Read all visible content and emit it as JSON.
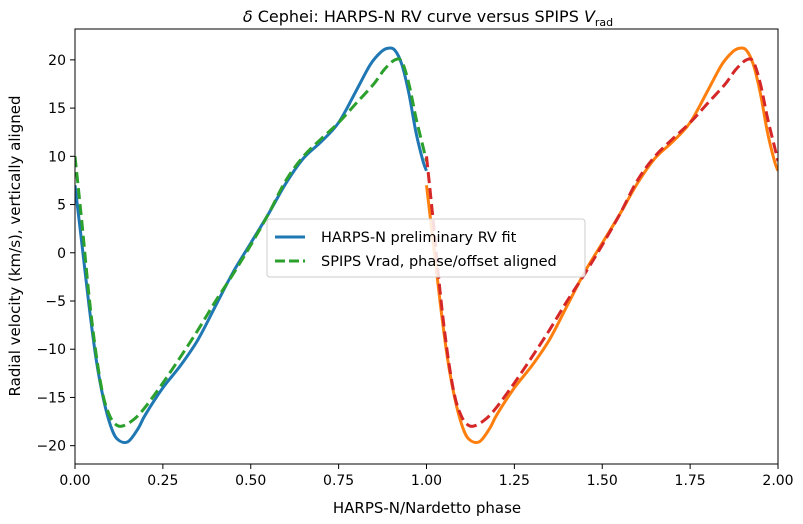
{
  "chart_data": {
    "type": "line",
    "title": {
      "prefix": "δ",
      "main": " Cephei: HARPS-N RV curve versus SPIPS ",
      "v": "V",
      "sub": "rad"
    },
    "xlabel": "HARPS-N/Nardetto phase",
    "ylabel": "Radial velocity (km/s), vertically aligned",
    "xlim": [
      0.0,
      2.0
    ],
    "ylim": [
      -21.9,
      23.2
    ],
    "xticks": [
      "0.00",
      "0.25",
      "0.50",
      "0.75",
      "1.00",
      "1.25",
      "1.50",
      "1.75",
      "2.00"
    ],
    "yticks": [
      "−20",
      "−15",
      "−10",
      "−5",
      "0",
      "5",
      "10",
      "15",
      "20"
    ],
    "grid": false,
    "legend": {
      "placement": "center",
      "entries": [
        "HARPS-N preliminary RV fit",
        "SPIPS Vrad, phase/offset aligned"
      ]
    },
    "colors": {
      "harps_first": "#1f77b4",
      "spips_first": "#2ca02c",
      "harps_second": "#ff7f0e",
      "spips_second": "#d62728"
    },
    "series": [
      {
        "name": "HARPS-N preliminary RV fit",
        "phase_range": "0-1",
        "color": "#1f77b4",
        "style": "solid",
        "x": [
          0.0,
          0.02,
          0.04,
          0.06,
          0.08,
          0.1,
          0.12,
          0.15,
          0.18,
          0.2,
          0.25,
          0.3,
          0.35,
          0.4,
          0.45,
          0.5,
          0.55,
          0.6,
          0.65,
          0.7,
          0.75,
          0.8,
          0.84,
          0.87,
          0.89,
          0.91,
          0.93,
          0.95,
          0.97,
          0.99,
          1.0
        ],
        "y": [
          7.0,
          0.8,
          -5.5,
          -11.0,
          -15.0,
          -17.8,
          -19.3,
          -19.6,
          -18.2,
          -16.8,
          -14.0,
          -11.7,
          -9.0,
          -5.5,
          -2.0,
          1.0,
          4.0,
          7.2,
          9.8,
          11.5,
          13.5,
          16.8,
          19.5,
          20.8,
          21.2,
          21.0,
          19.5,
          16.5,
          12.5,
          9.5,
          8.5
        ]
      },
      {
        "name": "SPIPS Vrad, phase/offset aligned",
        "phase_range": "0-1",
        "color": "#2ca02c",
        "style": "dashed",
        "x": [
          0.0,
          0.02,
          0.04,
          0.06,
          0.08,
          0.1,
          0.12,
          0.14,
          0.17,
          0.2,
          0.25,
          0.3,
          0.35,
          0.4,
          0.45,
          0.5,
          0.55,
          0.6,
          0.65,
          0.7,
          0.75,
          0.8,
          0.85,
          0.88,
          0.91,
          0.93,
          0.95,
          0.97,
          0.99,
          1.0
        ],
        "y": [
          10.0,
          3.0,
          -4.5,
          -10.5,
          -14.8,
          -17.0,
          -17.9,
          -17.9,
          -17.2,
          -16.0,
          -13.5,
          -10.8,
          -8.0,
          -5.0,
          -2.2,
          0.8,
          4.0,
          7.5,
          10.0,
          11.8,
          13.5,
          15.5,
          17.5,
          19.0,
          20.0,
          19.8,
          17.5,
          14.0,
          11.0,
          9.5
        ]
      },
      {
        "name": "HARPS-N preliminary RV fit",
        "phase_range": "1-2",
        "color": "#ff7f0e",
        "style": "solid",
        "x": [
          1.0,
          1.02,
          1.04,
          1.06,
          1.08,
          1.1,
          1.12,
          1.15,
          1.18,
          1.2,
          1.25,
          1.3,
          1.35,
          1.4,
          1.45,
          1.5,
          1.55,
          1.6,
          1.65,
          1.7,
          1.75,
          1.8,
          1.84,
          1.87,
          1.89,
          1.91,
          1.93,
          1.95,
          1.97,
          1.99,
          2.0
        ],
        "y": [
          7.0,
          0.8,
          -5.5,
          -11.0,
          -15.0,
          -17.8,
          -19.3,
          -19.6,
          -18.2,
          -16.8,
          -14.0,
          -11.7,
          -9.0,
          -5.5,
          -2.0,
          1.0,
          4.0,
          7.2,
          9.8,
          11.5,
          13.5,
          16.8,
          19.5,
          20.8,
          21.2,
          21.0,
          19.5,
          16.5,
          12.5,
          9.5,
          8.5
        ]
      },
      {
        "name": "SPIPS Vrad, phase/offset aligned",
        "phase_range": "1-2",
        "color": "#d62728",
        "style": "dashed",
        "x": [
          1.0,
          1.02,
          1.04,
          1.06,
          1.08,
          1.1,
          1.12,
          1.14,
          1.17,
          1.2,
          1.25,
          1.3,
          1.35,
          1.4,
          1.45,
          1.5,
          1.55,
          1.6,
          1.65,
          1.7,
          1.75,
          1.8,
          1.85,
          1.88,
          1.91,
          1.93,
          1.95,
          1.97,
          1.99,
          2.0
        ],
        "y": [
          10.0,
          3.0,
          -4.5,
          -10.5,
          -14.8,
          -17.0,
          -17.9,
          -17.9,
          -17.2,
          -16.0,
          -13.5,
          -10.8,
          -8.0,
          -5.0,
          -2.2,
          0.8,
          4.0,
          7.5,
          10.0,
          11.8,
          13.5,
          15.5,
          17.5,
          19.0,
          20.0,
          19.8,
          17.5,
          14.0,
          11.0,
          9.5
        ]
      }
    ]
  }
}
